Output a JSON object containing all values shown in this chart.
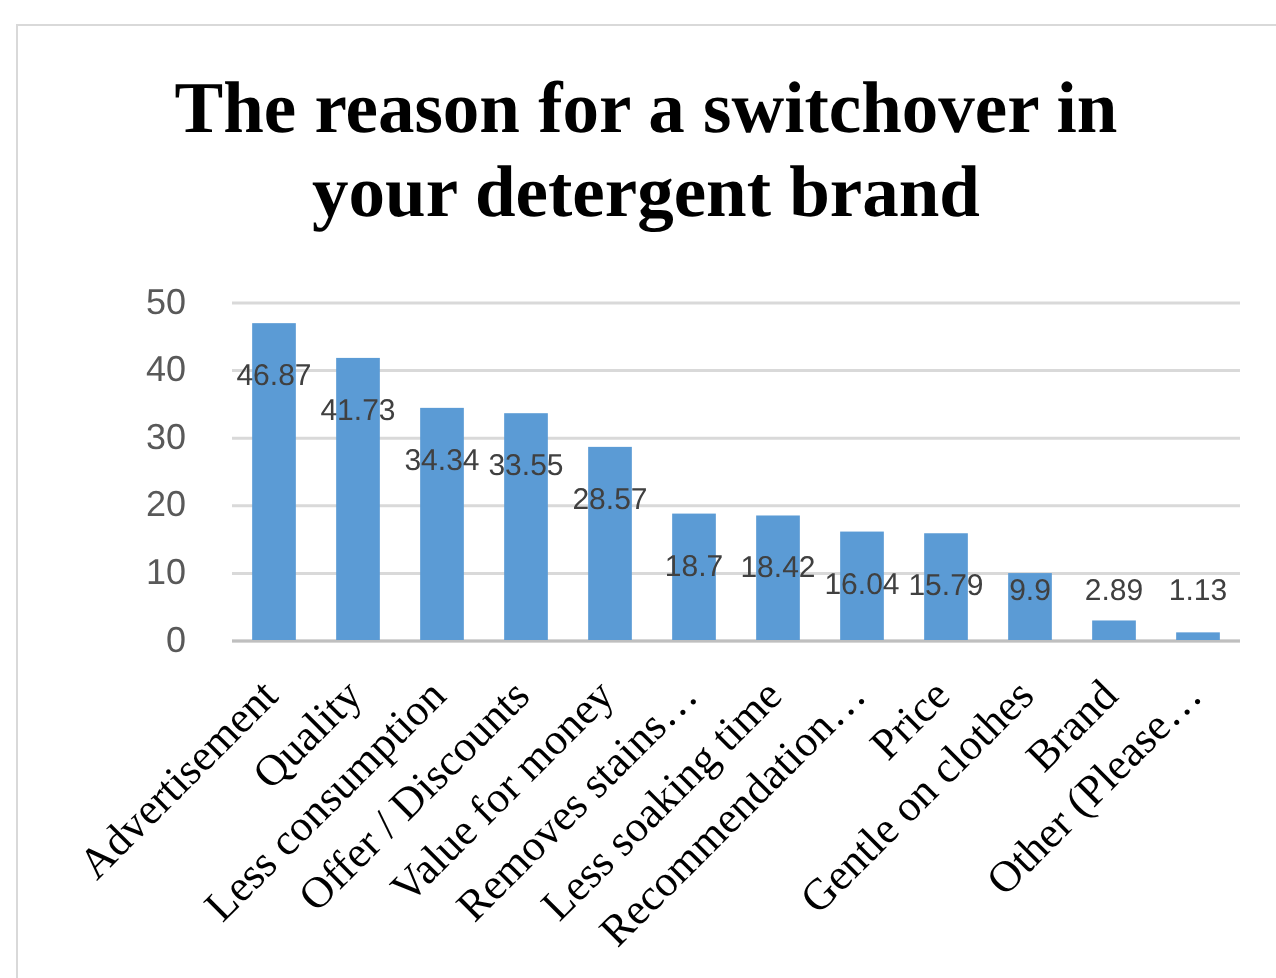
{
  "chart_data": {
    "type": "bar",
    "title": "The reason for a switchover in your detergent brand",
    "categories": [
      "Advertisement",
      "Quality",
      "Less consumption",
      "Offer / Discounts",
      "Value for money",
      "Removes stains…",
      "Less soaking time",
      "Recommendation…",
      "Price",
      "Gentle on clothes",
      "Brand",
      "Other (Please…"
    ],
    "values": [
      46.87,
      41.73,
      34.34,
      33.55,
      28.57,
      18.7,
      18.42,
      16.04,
      15.79,
      9.9,
      2.89,
      1.13
    ],
    "color": "#5b9bd5",
    "ylim": [
      0,
      50
    ],
    "yticks": [
      0,
      10,
      20,
      30,
      40,
      50
    ],
    "grid": "y",
    "data_labels": true
  }
}
